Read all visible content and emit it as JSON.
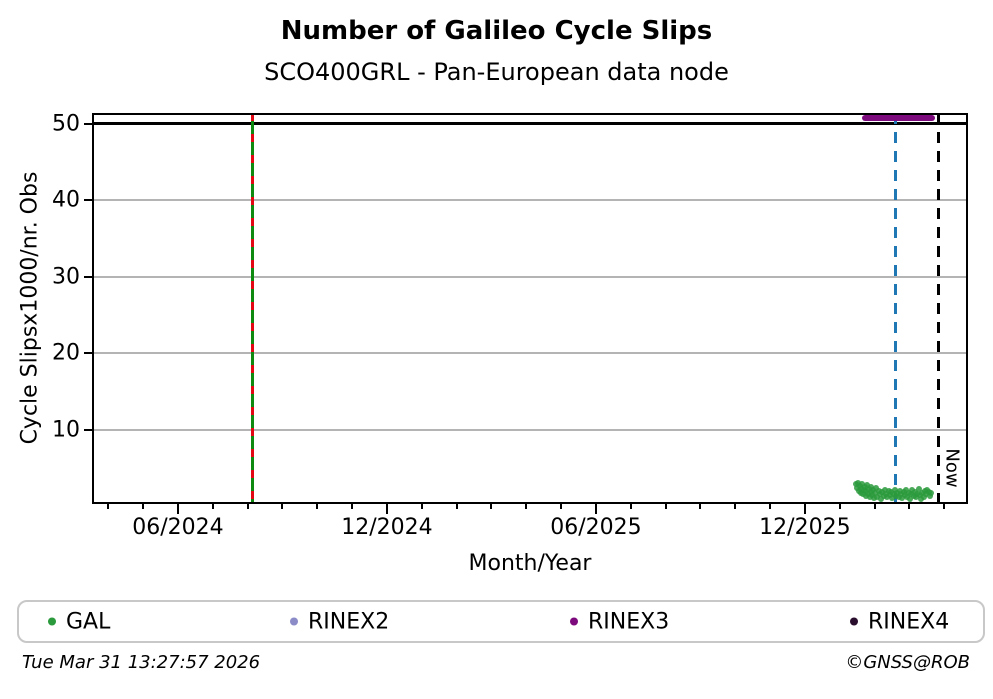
{
  "footer": {
    "timestamp": "Tue Mar 31 13:27:57 2026",
    "credit": "©GNSS@ROB"
  },
  "legend": [
    {
      "label": "GAL",
      "color": "#2a9a3c"
    },
    {
      "label": "RINEX2",
      "color": "#8b8bc8"
    },
    {
      "label": "RINEX3",
      "color": "#7d0a7d"
    },
    {
      "label": "RINEX4",
      "color": "#2a0e2e"
    }
  ],
  "chart_data": {
    "type": "scatter",
    "title": "Number of Galileo Cycle Slips",
    "subtitle": "SCO400GRL - Pan-European data node",
    "xlabel": "Month/Year",
    "ylabel": "Cycle Slipsx1000/nr. Obs",
    "x_unit": "decimal_year",
    "xlim": [
      2024.211,
      2026.307
    ],
    "ylim": [
      0.33,
      51.4
    ],
    "grid": "horizontal",
    "grid_color": "#b4b4b4",
    "y_ticks": [
      10,
      20,
      30,
      40,
      50
    ],
    "x_major_ticks": [
      {
        "x": 2024.4167,
        "label": "06/2024"
      },
      {
        "x": 2024.9167,
        "label": "12/2024"
      },
      {
        "x": 2025.4167,
        "label": "06/2025"
      },
      {
        "x": 2025.9167,
        "label": "12/2025"
      }
    ],
    "x_minor_ticks_monthly": {
      "start_year": 2024,
      "start_month": 4,
      "end_year": 2026,
      "end_month": 4
    },
    "hlines": [
      {
        "y": 50,
        "color": "#000000",
        "width": 3
      }
    ],
    "vlines": [
      {
        "x": 2024.594,
        "style": "solid-green-red-dashed",
        "color": "#0f8a10",
        "dash_color": "#e30613",
        "label": ""
      },
      {
        "x": 2026.134,
        "style": "dashed",
        "color": "#1f77b4",
        "label": ""
      },
      {
        "x": 2026.237,
        "style": "dashed",
        "color": "#000000",
        "label": "Now"
      }
    ],
    "series": [
      {
        "name": "GAL",
        "kind": "scatter",
        "color": "#2a9a3c",
        "marker_size": 6,
        "points": [
          [
            2026.04,
            2.9
          ],
          [
            2026.042,
            2.4
          ],
          [
            2026.044,
            3.1
          ],
          [
            2026.046,
            2.0
          ],
          [
            2026.048,
            2.7
          ],
          [
            2026.05,
            1.8
          ],
          [
            2026.052,
            2.3
          ],
          [
            2026.054,
            3.0
          ],
          [
            2026.056,
            1.6
          ],
          [
            2026.058,
            2.1
          ],
          [
            2026.06,
            2.6
          ],
          [
            2026.062,
            1.4
          ],
          [
            2026.064,
            2.0
          ],
          [
            2026.066,
            2.8
          ],
          [
            2026.068,
            1.7
          ],
          [
            2026.07,
            2.3
          ],
          [
            2026.072,
            1.2
          ],
          [
            2026.074,
            1.9
          ],
          [
            2026.076,
            2.5
          ],
          [
            2026.078,
            1.5
          ],
          [
            2026.08,
            2.1
          ],
          [
            2026.082,
            1.1
          ],
          [
            2026.085,
            1.8
          ],
          [
            2026.088,
            2.4
          ],
          [
            2026.09,
            1.3
          ],
          [
            2026.093,
            2.0
          ],
          [
            2026.096,
            1.6
          ],
          [
            2026.099,
            1.0
          ],
          [
            2026.102,
            1.9
          ],
          [
            2026.105,
            1.4
          ],
          [
            2026.108,
            2.2
          ],
          [
            2026.111,
            1.7
          ],
          [
            2026.114,
            1.2
          ],
          [
            2026.117,
            2.0
          ],
          [
            2026.12,
            1.5
          ],
          [
            2026.123,
            1.9
          ],
          [
            2026.126,
            1.1
          ],
          [
            2026.129,
            1.7
          ],
          [
            2026.132,
            2.1
          ],
          [
            2026.135,
            1.4
          ],
          [
            2026.138,
            1.8
          ],
          [
            2026.141,
            1.2
          ],
          [
            2026.144,
            2.0
          ],
          [
            2026.147,
            1.6
          ],
          [
            2026.15,
            1.1
          ],
          [
            2026.153,
            1.9
          ],
          [
            2026.156,
            1.5
          ],
          [
            2026.159,
            2.2
          ],
          [
            2026.162,
            1.3
          ],
          [
            2026.165,
            1.8
          ],
          [
            2026.168,
            1.0
          ],
          [
            2026.171,
            1.6
          ],
          [
            2026.174,
            2.1
          ],
          [
            2026.177,
            1.4
          ],
          [
            2026.18,
            1.9
          ],
          [
            2026.183,
            1.2
          ],
          [
            2026.186,
            1.7
          ],
          [
            2026.189,
            2.3
          ],
          [
            2026.192,
            1.5
          ],
          [
            2026.195,
            1.0
          ],
          [
            2026.198,
            1.8
          ],
          [
            2026.201,
            1.3
          ],
          [
            2026.204,
            2.0
          ],
          [
            2026.207,
            1.6
          ],
          [
            2026.21,
            2.2
          ],
          [
            2026.213,
            1.9
          ],
          [
            2026.216,
            1.4
          ],
          [
            2026.219,
            1.8
          ]
        ]
      },
      {
        "name": "RINEX2",
        "kind": "scatter",
        "color": "#8b8bc8",
        "points": []
      },
      {
        "name": "RINEX3",
        "kind": "line",
        "color": "#7d0a7d",
        "line_width": 6,
        "points": [
          [
            2026.053,
            50.8
          ],
          [
            2026.228,
            50.8
          ]
        ]
      },
      {
        "name": "RINEX4",
        "kind": "scatter",
        "color": "#2a0e2e",
        "points": []
      }
    ]
  }
}
